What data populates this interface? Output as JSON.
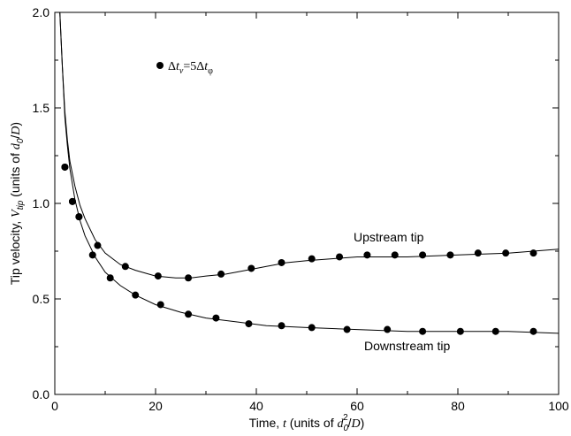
{
  "chart_data": {
    "type": "scatter",
    "title": "",
    "xlabel": {
      "text": "Time, ",
      "italic": "t",
      "units_open": " (units of ",
      "units_symbol": "d",
      "units_sub": "0",
      "units_sup": "2",
      "units_close": "/",
      "units_D": "D",
      "units_end": ")"
    },
    "ylabel": {
      "text": "Tip velocity, ",
      "italic": "V",
      "sub": "tip",
      "units_open": " (units of ",
      "units_symbol": "d",
      "units_sub": "0",
      "units_slash": "/",
      "units_D": "D",
      "units_end": ")"
    },
    "xlim": [
      0,
      100
    ],
    "ylim": [
      0.0,
      2.0
    ],
    "xticks": [
      "0",
      "20",
      "40",
      "60",
      "80",
      "100"
    ],
    "yticks": [
      "0.0",
      "0.5",
      "1.0",
      "1.5",
      "2.0"
    ],
    "grid": false,
    "legend": {
      "placement": "top-left",
      "marker": "filled-circle",
      "text_delta1": "Δ",
      "text_t1": "t",
      "text_sub1": "v",
      "text_eq": "=5",
      "text_delta2": "Δ",
      "text_t2": "t",
      "text_sub2": "φ"
    },
    "annotations": {
      "upstream": "Upstream tip",
      "downstream": "Downstream tip"
    },
    "series": [
      {
        "name": "Upstream tip",
        "points": [
          [
            2.0,
            1.19
          ],
          [
            3.5,
            1.01
          ],
          [
            4.8,
            0.93
          ],
          [
            8.5,
            0.78
          ],
          [
            14.0,
            0.67
          ],
          [
            20.5,
            0.62
          ],
          [
            26.5,
            0.61
          ],
          [
            33.0,
            0.63
          ],
          [
            39.0,
            0.66
          ],
          [
            45.0,
            0.69
          ],
          [
            51.0,
            0.71
          ],
          [
            56.5,
            0.72
          ],
          [
            62.0,
            0.73
          ],
          [
            67.5,
            0.73
          ],
          [
            73.0,
            0.73
          ],
          [
            78.5,
            0.73
          ],
          [
            84.0,
            0.74
          ],
          [
            89.5,
            0.74
          ],
          [
            95.0,
            0.74
          ]
        ],
        "fit": [
          [
            1.0,
            2.0
          ],
          [
            1.5,
            1.72
          ],
          [
            2.0,
            1.48
          ],
          [
            2.5,
            1.33
          ],
          [
            3.0,
            1.22
          ],
          [
            4.0,
            1.09
          ],
          [
            5.0,
            0.99
          ],
          [
            6.0,
            0.92
          ],
          [
            8.0,
            0.81
          ],
          [
            10.0,
            0.74
          ],
          [
            13.0,
            0.68
          ],
          [
            16.0,
            0.65
          ],
          [
            20.0,
            0.62
          ],
          [
            24.0,
            0.61
          ],
          [
            27.0,
            0.61
          ],
          [
            30.0,
            0.62
          ],
          [
            34.0,
            0.63
          ],
          [
            38.0,
            0.65
          ],
          [
            42.0,
            0.67
          ],
          [
            46.0,
            0.69
          ],
          [
            50.0,
            0.7
          ],
          [
            55.0,
            0.71
          ],
          [
            60.0,
            0.72
          ],
          [
            70.0,
            0.72
          ],
          [
            80.0,
            0.73
          ],
          [
            90.0,
            0.74
          ],
          [
            100.0,
            0.76
          ]
        ]
      },
      {
        "name": "Downstream tip",
        "points": [
          [
            2.0,
            1.19
          ],
          [
            3.5,
            1.01
          ],
          [
            4.8,
            0.93
          ],
          [
            7.5,
            0.73
          ],
          [
            11.0,
            0.61
          ],
          [
            16.0,
            0.52
          ],
          [
            21.0,
            0.47
          ],
          [
            26.5,
            0.42
          ],
          [
            32.0,
            0.4
          ],
          [
            38.5,
            0.37
          ],
          [
            45.0,
            0.36
          ],
          [
            51.0,
            0.35
          ],
          [
            58.0,
            0.34
          ],
          [
            66.0,
            0.34
          ],
          [
            73.0,
            0.33
          ],
          [
            80.5,
            0.33
          ],
          [
            87.5,
            0.33
          ],
          [
            95.0,
            0.33
          ]
        ],
        "fit": [
          [
            1.0,
            2.0
          ],
          [
            1.5,
            1.72
          ],
          [
            2.0,
            1.45
          ],
          [
            2.5,
            1.3
          ],
          [
            3.0,
            1.18
          ],
          [
            4.0,
            1.02
          ],
          [
            5.0,
            0.91
          ],
          [
            6.0,
            0.83
          ],
          [
            8.0,
            0.72
          ],
          [
            10.0,
            0.64
          ],
          [
            13.0,
            0.57
          ],
          [
            16.0,
            0.52
          ],
          [
            20.0,
            0.47
          ],
          [
            25.0,
            0.43
          ],
          [
            30.0,
            0.4
          ],
          [
            36.0,
            0.38
          ],
          [
            42.0,
            0.36
          ],
          [
            50.0,
            0.35
          ],
          [
            60.0,
            0.34
          ],
          [
            70.0,
            0.33
          ],
          [
            80.0,
            0.33
          ],
          [
            90.0,
            0.33
          ],
          [
            100.0,
            0.32
          ]
        ]
      }
    ]
  }
}
